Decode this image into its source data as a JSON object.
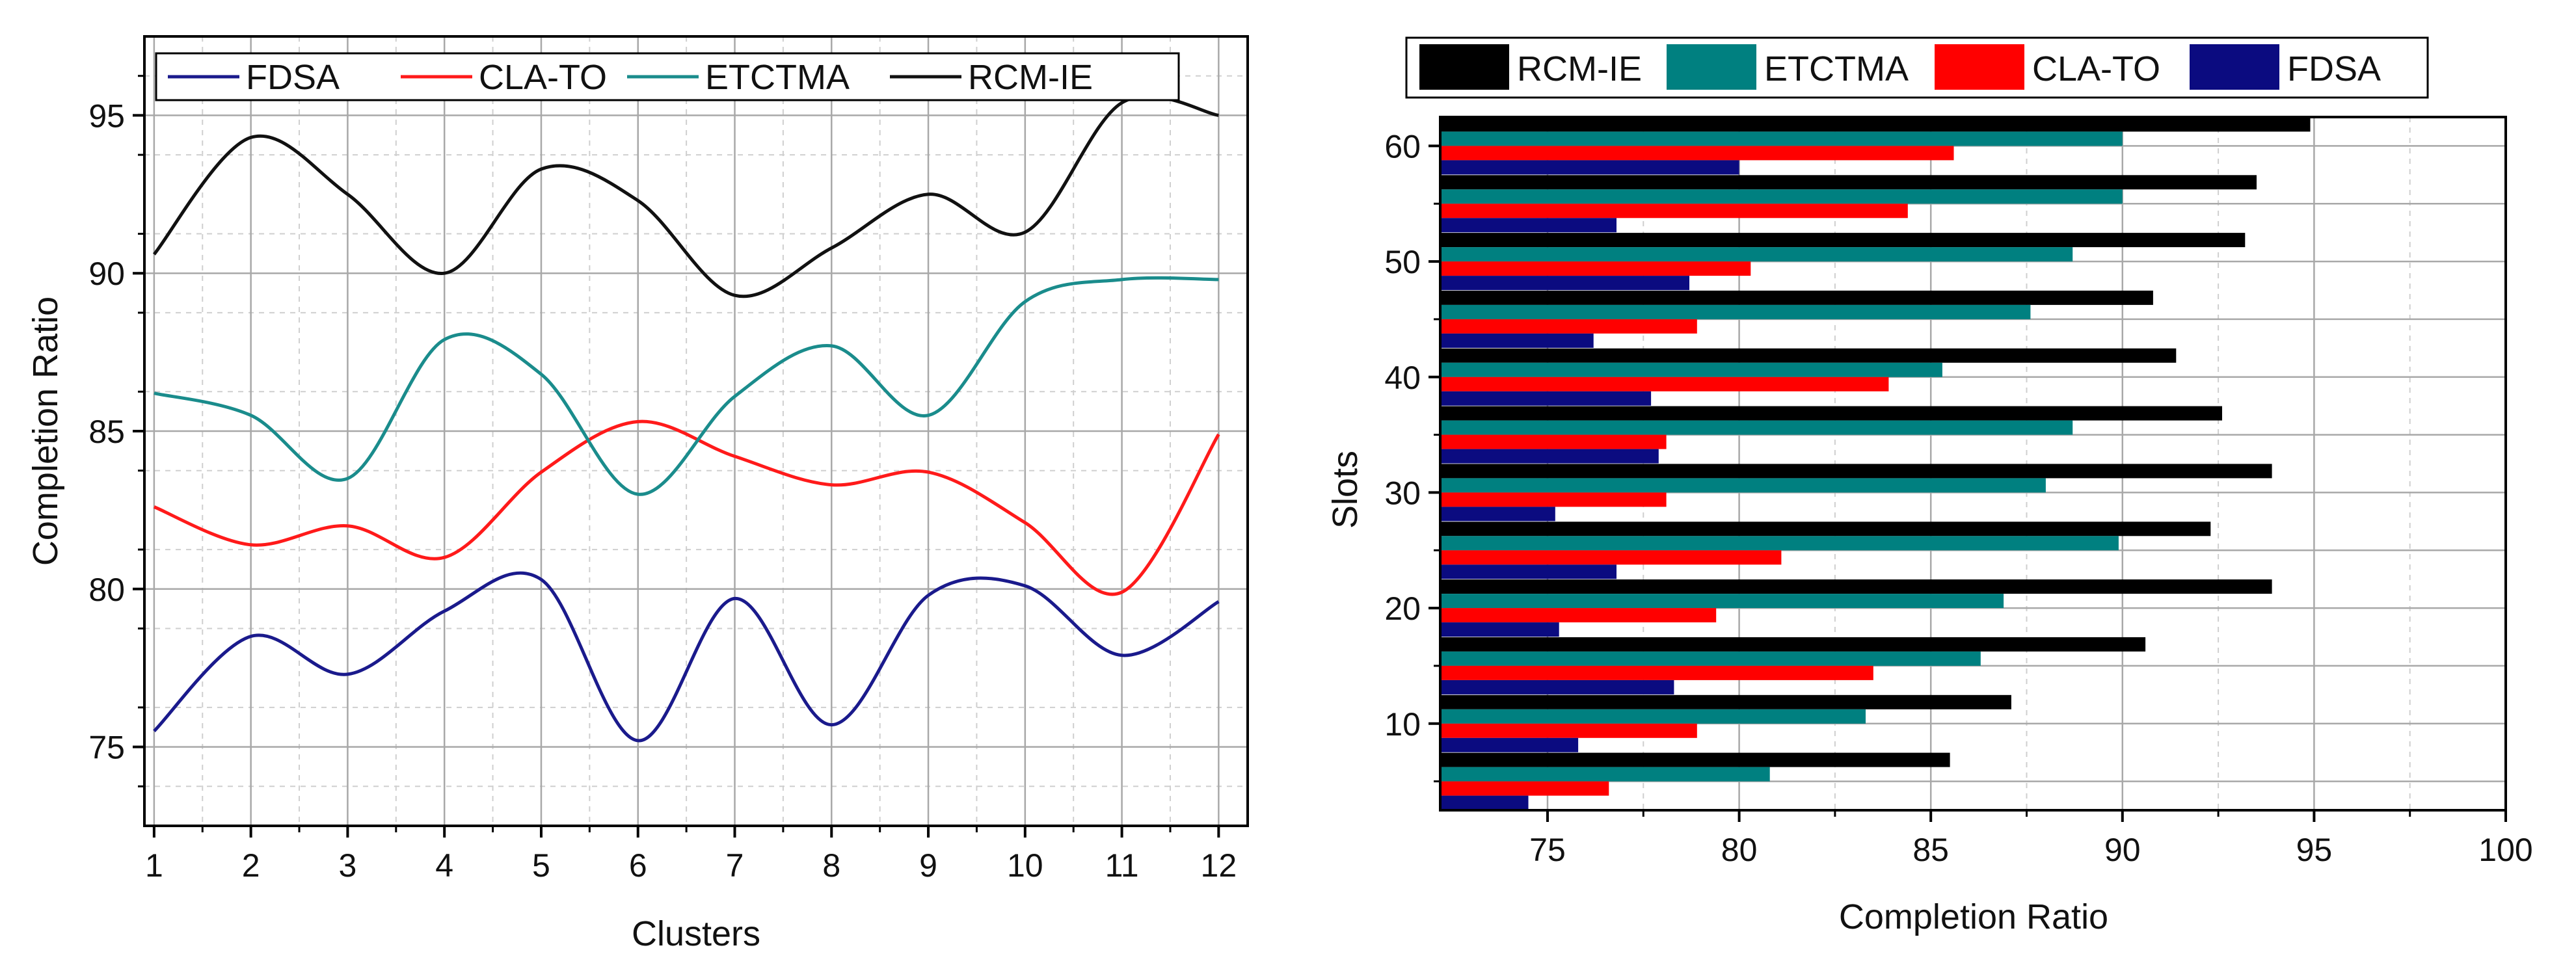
{
  "colors": {
    "FDSA": "#1a1a8c",
    "CLA-TO": "#ff1a1a",
    "ETCTMA": "#1a8c8c",
    "RCM-IE": "#111111",
    "bar_FDSA": "#0b0b80",
    "bar_CLA-TO": "#ff0000",
    "bar_ETCTMA": "#008080",
    "bar_RCM-IE": "#000000",
    "grid_major": "#a8a8a8",
    "grid_minor": "#cfcfcf"
  },
  "chart_data": [
    {
      "type": "line",
      "title": "",
      "xlabel": "Clusters",
      "ylabel": "Completion Ratio",
      "x": [
        1,
        2,
        3,
        4,
        5,
        6,
        7,
        8,
        9,
        10,
        11,
        12
      ],
      "xlim": [
        0.9,
        12.3
      ],
      "ylim": [
        72.5,
        97.5
      ],
      "xticks": [
        1,
        2,
        3,
        4,
        5,
        6,
        7,
        8,
        9,
        10,
        11,
        12
      ],
      "yticks": [
        75,
        80,
        85,
        90,
        95
      ],
      "grid": true,
      "legend": [
        "FDSA",
        "CLA-TO",
        "ETCTMA",
        "RCM-IE"
      ],
      "legend_position": "top",
      "series": [
        {
          "name": "FDSA",
          "values": [
            75.5,
            78.5,
            77.3,
            79.3,
            80.3,
            75.2,
            79.7,
            75.7,
            79.8,
            80.1,
            77.9,
            79.6
          ]
        },
        {
          "name": "CLA-TO",
          "values": [
            82.6,
            81.4,
            82.0,
            81.0,
            83.7,
            85.3,
            84.2,
            83.3,
            83.7,
            82.1,
            79.9,
            84.9
          ]
        },
        {
          "name": "ETCTMA",
          "values": [
            86.2,
            85.5,
            83.5,
            87.9,
            86.8,
            83.0,
            86.1,
            87.7,
            85.5,
            89.1,
            89.8,
            89.8
          ]
        },
        {
          "name": "RCM-IE",
          "values": [
            90.6,
            94.3,
            92.5,
            90.0,
            93.3,
            92.3,
            89.3,
            90.8,
            92.5,
            91.3,
            95.4,
            95.0
          ]
        }
      ]
    },
    {
      "type": "bar",
      "orientation": "horizontal",
      "title": "",
      "xlabel": "Completion Ratio",
      "ylabel": "Slots",
      "categories": [
        5,
        10,
        15,
        20,
        25,
        30,
        35,
        40,
        45,
        50,
        55,
        60
      ],
      "xlim": [
        72.2,
        100
      ],
      "xticks": [
        75,
        80,
        85,
        90,
        95,
        100
      ],
      "ytick_labels": [
        "10",
        "20",
        "30",
        "40",
        "50",
        "60"
      ],
      "grid": true,
      "legend": [
        "RCM-IE",
        "ETCTMA",
        "CLA-TO",
        "FDSA"
      ],
      "legend_position": "top",
      "series": [
        {
          "name": "RCM-IE",
          "values": [
            85.5,
            87.1,
            90.6,
            93.9,
            92.3,
            93.9,
            92.6,
            91.4,
            90.8,
            93.2,
            93.5,
            94.9
          ]
        },
        {
          "name": "ETCTMA",
          "values": [
            80.8,
            83.3,
            86.3,
            86.9,
            89.9,
            88.0,
            88.7,
            85.3,
            87.6,
            88.7,
            90.0,
            90.0
          ]
        },
        {
          "name": "CLA-TO",
          "values": [
            76.6,
            78.9,
            83.5,
            79.4,
            81.1,
            78.1,
            78.1,
            83.9,
            78.9,
            80.3,
            84.4,
            85.6
          ]
        },
        {
          "name": "FDSA",
          "values": [
            74.5,
            75.8,
            78.3,
            75.3,
            76.8,
            75.2,
            77.9,
            77.7,
            76.2,
            78.7,
            76.8,
            80.0
          ]
        }
      ]
    }
  ]
}
